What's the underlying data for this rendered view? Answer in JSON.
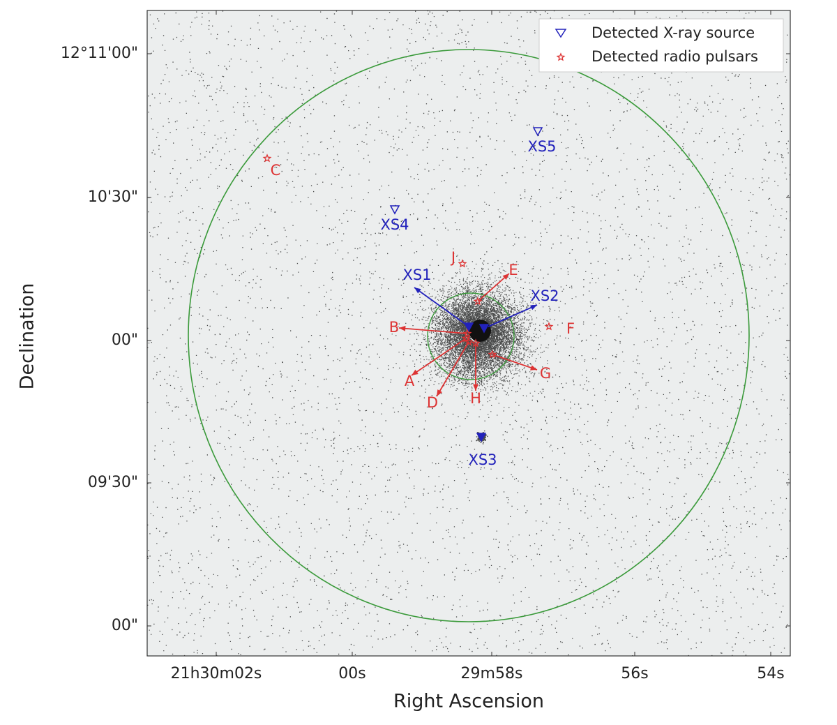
{
  "axes": {
    "xlabel": "Right Ascension",
    "ylabel": "Declination",
    "xticks": [
      "21h30m02s",
      "00s",
      "29m58s",
      "56s",
      "54s"
    ],
    "yticks": [
      "12°11'00\"",
      "10'30\"",
      "00\"",
      "09'30\"",
      "00\""
    ]
  },
  "legend": [
    "Detected X-ray source",
    "Detected radio pulsars"
  ],
  "xray_sources": [
    "XS1",
    "XS2",
    "XS3",
    "XS4",
    "XS5"
  ],
  "pulsars": [
    "A",
    "B",
    "C",
    "D",
    "E",
    "F",
    "G",
    "H",
    "J"
  ]
}
